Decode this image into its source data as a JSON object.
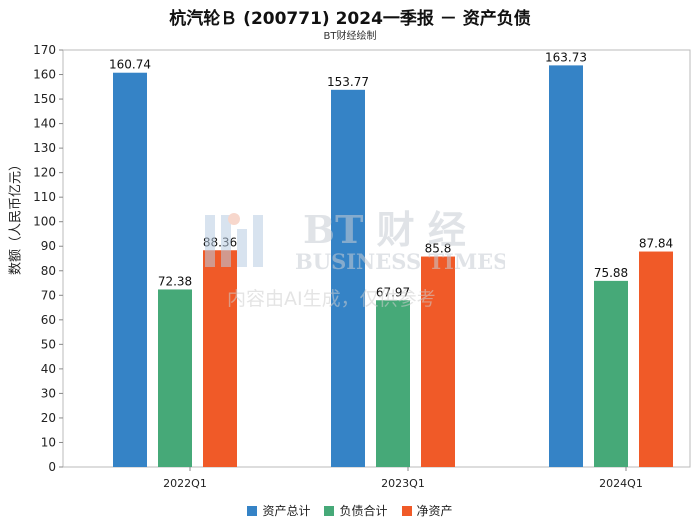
{
  "title": "杭汽轮Ｂ (200771) 2024一季报 － 资产负债",
  "subtitle": "BT财经绘制",
  "watermark": {
    "brand_cn": "BT 财 经",
    "brand_en": "BUSINESS TIMES",
    "notice": "内容由AI生成，仅供参考"
  },
  "chart_data": {
    "type": "bar",
    "ylabel": "数额（人民币亿元）",
    "ylim": [
      0,
      170
    ],
    "yticks": [
      0,
      10,
      20,
      30,
      40,
      50,
      60,
      70,
      80,
      90,
      100,
      110,
      120,
      130,
      140,
      150,
      160,
      170
    ],
    "categories": [
      "2022Q1",
      "2023Q1",
      "2024Q1"
    ],
    "series": [
      {
        "name": "资产总计",
        "color": "#3583c6",
        "values": [
          160.74,
          153.77,
          163.73
        ],
        "labels": [
          "160.74",
          "153.77",
          "163.73"
        ]
      },
      {
        "name": "负债合计",
        "color": "#46a978",
        "values": [
          72.38,
          67.97,
          75.88
        ],
        "labels": [
          "72.38",
          "67.97",
          "75.88"
        ]
      },
      {
        "name": "净资产",
        "color": "#f05a28",
        "values": [
          88.36,
          85.8,
          87.84
        ],
        "labels": [
          "88.36",
          "85.8",
          "87.84"
        ]
      }
    ],
    "grid": false,
    "legend_position": "bottom"
  }
}
